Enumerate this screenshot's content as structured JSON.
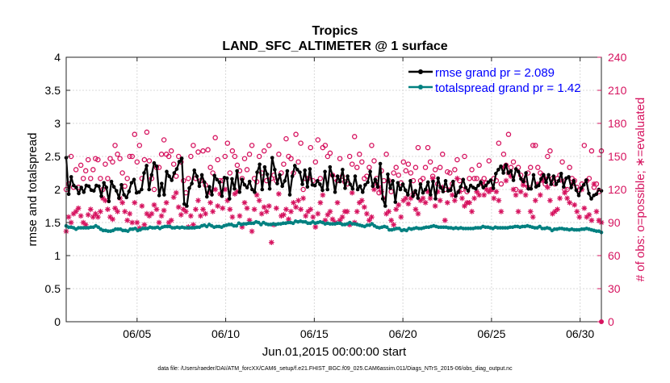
{
  "chart_data": {
    "type": "line",
    "title": "Tropics",
    "subtitle": "LAND_SFC_ALTIMETER @ 1 surface",
    "xlabel": "Jun.01,2015 00:00:00 start",
    "ylabel_left": "rmse and totalspread",
    "ylabel_right": "# of obs: o=possible; ∗=evaluated",
    "footnote": "data file: /Users/raeder/DAI/ATM_forcXX/CAM6_setup/f.e21.FHIST_BGC.f09_025.CAM6assim.011/Diags_NTrS_2015-06/obs_diag_output.nc",
    "xlim": [
      1,
      31.2
    ],
    "ylim_left": [
      0,
      4
    ],
    "ylim_right": [
      0,
      240
    ],
    "x_ticks": [
      5,
      10,
      15,
      20,
      25,
      30
    ],
    "x_tick_labels": [
      "06/05",
      "06/10",
      "06/15",
      "06/20",
      "06/25",
      "06/30"
    ],
    "y_left_ticks": [
      0,
      0.5,
      1,
      1.5,
      2,
      2.5,
      3,
      3.5,
      4
    ],
    "y_left_tick_labels": [
      "0",
      "0.5",
      "1",
      "1.5",
      "2",
      "2.5",
      "3",
      "3.5",
      "4"
    ],
    "y_right_ticks": [
      0,
      30,
      60,
      90,
      120,
      150,
      180,
      210,
      240
    ],
    "y_right_tick_labels": [
      "0",
      "30",
      "60",
      "90",
      "120",
      "150",
      "180",
      "210",
      "240"
    ],
    "legend_position": "top-right",
    "colors": {
      "rmse": "#000000",
      "spread": "#008080",
      "obs": "#d6135f",
      "legend_text": "#0000ff"
    },
    "series": [
      {
        "name": "rmse",
        "legend": "rmse grand pr = 2.089",
        "values": [
          2.48,
          1.93,
          2.19,
          2.06,
          2.03,
          1.94,
          2.03,
          1.96,
          2.06,
          2.05,
          1.99,
          1.98,
          2.06,
          2.05,
          1.9,
          2.1,
          2.03,
          1.82,
          2.12,
          2.04,
          1.98,
          1.87,
          2.07,
          1.92,
          1.88,
          1.97,
          2.1,
          2.15,
          1.95,
          1.96,
          2.0,
          2.25,
          2.36,
          2.0,
          2.22,
          2.4,
          2.35,
          1.91,
          2.09,
          1.92,
          2.27,
          2.2,
          2.14,
          2.25,
          2.31,
          2.42,
          2.47,
          1.78,
          1.75,
          2.02,
          2.09,
          2.29,
          2.2,
          2.05,
          2.22,
          2.11,
          1.89,
          2.04,
          1.92,
          2.21,
          2.15,
          2.11,
          1.9,
          2.18,
          2.17,
          1.86,
          2.16,
          2.01,
          2.28,
          1.96,
          2.15,
          2.07,
          2.03,
          2.12,
          2.0,
          1.96,
          2.26,
          2.38,
          2.0,
          2.34,
          2.23,
          2.01,
          2.48,
          2.3,
          2.09,
          2.22,
          2.05,
          2.13,
          2.28,
          1.92,
          2.2,
          2.36,
          2.3,
          2.26,
          2.08,
          2.29,
          2.04,
          2.31,
          2.07,
          2.06,
          2.13,
          2.08,
          1.99,
          2.27,
          2.0,
          2.34,
          2.21,
          1.96,
          2.2,
          2.12,
          2.3,
          2.02,
          2.2,
          2.08,
          2.01,
          2.2,
          2.0,
          2.05,
          1.96,
          2.07,
          2.11,
          2.27,
          2.05,
          2.15,
          2.04,
          2.39,
          1.86,
          1.75,
          2.23,
          2.02,
          2.13,
          1.81,
          2.1,
          2.0,
          2.08,
          1.99,
          1.92,
          2.13,
          1.9,
          1.98,
          1.87,
          2.08,
          1.95,
          2.0,
          2.11,
          1.92,
          2.12,
          1.86,
          2.17,
          2.03,
          1.97,
          2.13,
          1.98,
          1.99,
          2.12,
          1.9,
          1.96,
          2.04,
          2.15,
          2.03,
          1.98,
          2.06,
          2.03,
          2.01,
          2.06,
          2.11,
          2.03,
          2.06,
          2.11,
          2.14,
          2.02,
          2.24,
          2.3,
          2.35,
          2.25,
          2.37,
          2.25,
          2.28,
          2.14,
          2.31,
          2.27,
          2.16,
          2.12,
          2.25,
          2.01,
          2.01,
          2.22,
          2.04,
          2.06,
          2.16,
          2.22,
          2.11,
          2.22,
          2.08,
          2.2,
          2.08,
          2.13,
          2.24,
          2.04,
          2.17,
          2.19,
          2.03,
          2.13,
          1.99,
          1.91,
          2.02,
          2.07,
          2.14,
          1.94,
          1.86,
          1.91,
          1.93,
          2.0,
          1.98
        ]
      },
      {
        "name": "totalspread",
        "legend": "totalspread grand pr = 1.42",
        "values": [
          1.45,
          1.43,
          1.43,
          1.42,
          1.4,
          1.42,
          1.42,
          1.42,
          1.42,
          1.42,
          1.43,
          1.43,
          1.45,
          1.43,
          1.4,
          1.38,
          1.38,
          1.37,
          1.37,
          1.38,
          1.4,
          1.4,
          1.4,
          1.38,
          1.38,
          1.37,
          1.4,
          1.4,
          1.41,
          1.38,
          1.39,
          1.41,
          1.41,
          1.41,
          1.43,
          1.42,
          1.42,
          1.43,
          1.41,
          1.43,
          1.44,
          1.44,
          1.44,
          1.42,
          1.42,
          1.43,
          1.42,
          1.43,
          1.42,
          1.42,
          1.42,
          1.42,
          1.42,
          1.43,
          1.43,
          1.45,
          1.46,
          1.44,
          1.47,
          1.45,
          1.43,
          1.44,
          1.44,
          1.43,
          1.45,
          1.46,
          1.47,
          1.47,
          1.45,
          1.45,
          1.49,
          1.47,
          1.48,
          1.48,
          1.49,
          1.49,
          1.49,
          1.51,
          1.5,
          1.47,
          1.5,
          1.48,
          1.47,
          1.47,
          1.48,
          1.47,
          1.48,
          1.48,
          1.49,
          1.49,
          1.5,
          1.5,
          1.49,
          1.52,
          1.51,
          1.52,
          1.51,
          1.51,
          1.49,
          1.49,
          1.51,
          1.49,
          1.5,
          1.51,
          1.5,
          1.48,
          1.49,
          1.48,
          1.48,
          1.48,
          1.49,
          1.49,
          1.47,
          1.47,
          1.48,
          1.5,
          1.48,
          1.48,
          1.47,
          1.46,
          1.45,
          1.44,
          1.46,
          1.46,
          1.48,
          1.45,
          1.43,
          1.42,
          1.43,
          1.44,
          1.43,
          1.39,
          1.39,
          1.4,
          1.41,
          1.41,
          1.38,
          1.39,
          1.38,
          1.41,
          1.4,
          1.41,
          1.42,
          1.41,
          1.41,
          1.42,
          1.43,
          1.43,
          1.44,
          1.45,
          1.44,
          1.43,
          1.43,
          1.43,
          1.43,
          1.42,
          1.42,
          1.41,
          1.42,
          1.41,
          1.42,
          1.41,
          1.41,
          1.41,
          1.41,
          1.41,
          1.42,
          1.42,
          1.42,
          1.44,
          1.43,
          1.43,
          1.42,
          1.41,
          1.43,
          1.42,
          1.42,
          1.42,
          1.42,
          1.42,
          1.43,
          1.43,
          1.44,
          1.44,
          1.43,
          1.44,
          1.44,
          1.45,
          1.44,
          1.43,
          1.42,
          1.42,
          1.44,
          1.41,
          1.41,
          1.42,
          1.41,
          1.38,
          1.4,
          1.4,
          1.41,
          1.41,
          1.4,
          1.4,
          1.39,
          1.4,
          1.39,
          1.39,
          1.39,
          1.4,
          1.4,
          1.41,
          1.4,
          1.39,
          1.38,
          1.37,
          1.37,
          1.35
        ]
      },
      {
        "name": "obs_possible",
        "marker": "o",
        "values": [
          120,
          125,
          150,
          122,
          138,
          122,
          142,
          130,
          137,
          147,
          130,
          138,
          148,
          147,
          130,
          120,
          143,
          130,
          148,
          145,
          160,
          152,
          148,
          135,
          123,
          130,
          150,
          150,
          170,
          145,
          160,
          130,
          147,
          172,
          146,
          130,
          120,
          140,
          140,
          152,
          165,
          152,
          150,
          155,
          143,
          132,
          150,
          145,
          128,
          117,
          130,
          150,
          160,
          130,
          154,
          128,
          155,
          124,
          156,
          140,
          135,
          167,
          147,
          128,
          128,
          150,
          162,
          135,
          155,
          150,
          142,
          137,
          130,
          148,
          138,
          152,
          160,
          130,
          127,
          150,
          135,
          155,
          128,
          160,
          130,
          133,
          128,
          152,
          135,
          143,
          166,
          150,
          148,
          135,
          170,
          145,
          162,
          120,
          130,
          130,
          158,
          128,
          145,
          165,
          130,
          158,
          160,
          150,
          153,
          133,
          130,
          128,
          148,
          132,
          127,
          125,
          150,
          143,
          168,
          140,
          152,
          145,
          130,
          132,
          140,
          160,
          146,
          130,
          117,
          137,
          128,
          152,
          128,
          118,
          135,
          140,
          133,
          126,
          145,
          137,
          143,
          135,
          128,
          140,
          158,
          128,
          130,
          140,
          158,
          145,
          132,
          138,
          125,
          140,
          152,
          120,
          136,
          135,
          125,
          138,
          147,
          128,
          120,
          150,
          118,
          130,
          138,
          130,
          130,
          142,
          127,
          130,
          126,
          146,
          120,
          130,
          128,
          162,
          125,
          152,
          142,
          170,
          140,
          145,
          120,
          140,
          133,
          128,
          125,
          135,
          140,
          160,
          160,
          140,
          135,
          133,
          125,
          150,
          155,
          130,
          125,
          130,
          133,
          145,
          120,
          120,
          140,
          130,
          128,
          122,
          120,
          125,
          160,
          128,
          130,
          155,
          122,
          125,
          118,
          155
        ]
      },
      {
        "name": "obs_evaluated",
        "marker": "*",
        "values": [
          82,
          95,
          90,
          98,
          100,
          103,
          96,
          90,
          88,
          97,
          102,
          95,
          98,
          95,
          100,
          112,
          110,
          102,
          95,
          93,
          103,
          100,
          112,
          108,
          100,
          92,
          98,
          90,
          108,
          90,
          85,
          105,
          88,
          98,
          96,
          98,
          106,
          102,
          90,
          96,
          101,
          108,
          90,
          92,
          113,
          117,
          104,
          97,
          102,
          100,
          86,
          96,
          88,
          102,
          110,
          96,
          102,
          98,
          117,
          108,
          100,
          120,
          105,
          116,
          103,
          120,
          110,
          102,
          95,
          116,
          118,
          96,
          86,
          108,
          103,
          92,
          82,
          102,
          115,
          110,
          98,
          104,
          100,
          105,
          72,
          88,
          103,
          116,
          96,
          97,
          102,
          93,
          100,
          108,
          104,
          110,
          102,
          112,
          96,
          100,
          102,
          95,
          86,
          98,
          108,
          115,
          92,
          97,
          100,
          93,
          90,
          108,
          92,
          95,
          100,
          100,
          88,
          117,
          90,
          100,
          108,
          110,
          104,
          98,
          92,
          95,
          120,
          125,
          122,
          118,
          112,
          98,
          100,
          92,
          88,
          102,
          106,
          95,
          110,
          112,
          107,
          112,
          116,
          102,
          98,
          110,
          112,
          108,
          118,
          112,
          130,
          105,
          118,
          110,
          122,
          92,
          108,
          120,
          115,
          110,
          130,
          118,
          112,
          105,
          108,
          108,
          100,
          112,
          118,
          115,
          125,
          115,
          120,
          118,
          120,
          112,
          118,
          110,
          100,
          140,
          128,
          135,
          132,
          120,
          115,
          100,
          118,
          124,
          115,
          122,
          100,
          95,
          110,
          125,
          115,
          128,
          130,
          122,
          110,
          98,
          100,
          102,
          112,
          128,
          117,
          112,
          108,
          125,
          106,
          100,
          95,
          120,
          103,
          95,
          97,
          92,
          125,
          100,
          92,
          90
        ]
      }
    ]
  }
}
